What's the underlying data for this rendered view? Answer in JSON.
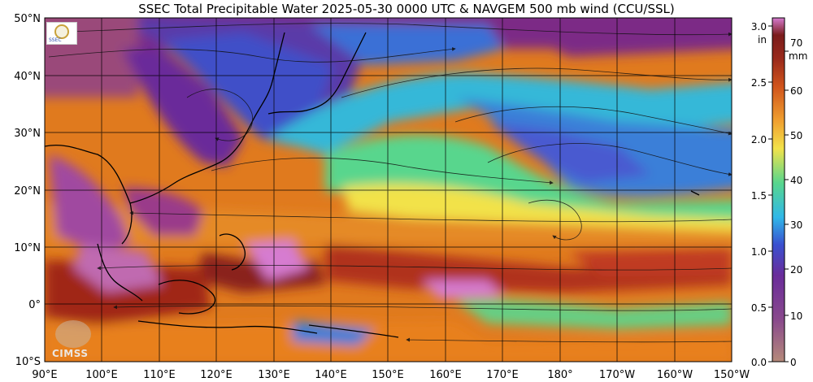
{
  "title": "SSEC Total Precipitable Water  2025-05-30 0000 UTC & NAVGEM 500 mb wind (CCU/SSL)",
  "lat_ticks": [
    "50°N",
    "40°N",
    "30°N",
    "20°N",
    "10°N",
    "0°",
    "10°S"
  ],
  "lon_ticks": [
    "90°E",
    "100°E",
    "110°E",
    "120°E",
    "130°E",
    "140°E",
    "150°E",
    "160°E",
    "170°E",
    "180°",
    "170°W",
    "160°W",
    "150°W"
  ],
  "colorbar": {
    "in_ticks": [
      "3.0",
      "2.5",
      "2.0",
      "1.5",
      "1.0",
      "0.5",
      "0.0"
    ],
    "in_unit": "in",
    "mm_ticks": [
      "70",
      "60",
      "50",
      "40",
      "30",
      "20",
      "10",
      "0"
    ],
    "mm_unit": "mm"
  },
  "logos": {
    "cimss": "CIMSS",
    "ssec_banner": "SSEC"
  },
  "palette": {
    "dry": "#b58a7a",
    "purple": "#7b2c86",
    "violet": "#6a3ea8",
    "blue": "#3b6fd6",
    "cyan": "#30b8e8",
    "green": "#58d68d",
    "yellow": "#f2e24a",
    "orange": "#f08a1e",
    "red": "#c0392b",
    "maroon": "#7a1c1c",
    "pink": "#d67bd0"
  }
}
